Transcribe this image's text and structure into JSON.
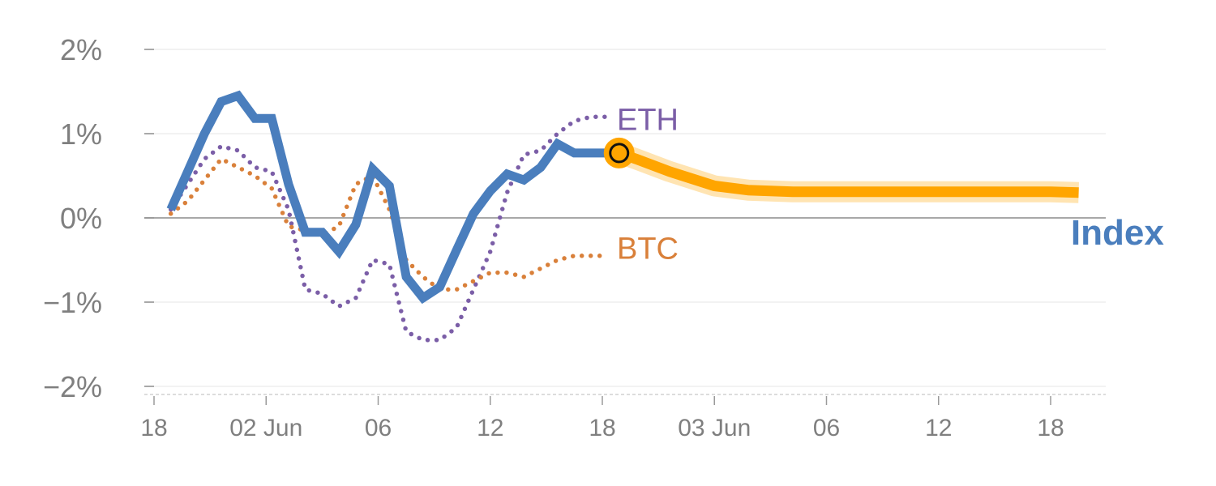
{
  "chart_data": {
    "type": "line",
    "title": "",
    "xlabel": "",
    "ylabel": "",
    "ylim": [
      -2,
      2
    ],
    "y_ticks": [
      {
        "value": 2,
        "label": "2%"
      },
      {
        "value": 1,
        "label": "1%"
      },
      {
        "value": 0,
        "label": "0%"
      },
      {
        "value": -1,
        "label": "−1%"
      },
      {
        "value": -2,
        "label": "−2%"
      }
    ],
    "x_range": [
      0,
      84
    ],
    "x_ticks": [
      {
        "value": 0,
        "label": "18"
      },
      {
        "value": 10,
        "label": "02 Jun"
      },
      {
        "value": 20,
        "label": "06"
      },
      {
        "value": 30,
        "label": "12"
      },
      {
        "value": 40,
        "label": "18"
      },
      {
        "value": 50,
        "label": "03 Jun"
      },
      {
        "value": 60,
        "label": "06"
      },
      {
        "value": 70,
        "label": "12"
      },
      {
        "value": 80,
        "label": "18"
      }
    ],
    "grid": true,
    "series": [
      {
        "name": "ETH",
        "style": "dotted",
        "color": "#7b5ea7",
        "x": [
          1.5,
          3,
          4.5,
          6,
          7.5,
          9,
          10.5,
          12,
          13.5,
          15,
          16.5,
          18,
          19.5,
          21,
          22.5,
          24,
          25.5,
          27,
          28.5,
          30,
          31.5,
          33,
          34.5,
          36,
          37.5,
          39,
          40.5
        ],
        "y": [
          0.1,
          0.4,
          0.7,
          0.85,
          0.8,
          0.6,
          0.55,
          0.1,
          -0.85,
          -0.9,
          -1.05,
          -0.95,
          -0.5,
          -0.55,
          -1.35,
          -1.45,
          -1.45,
          -1.3,
          -0.85,
          -0.4,
          0.3,
          0.75,
          0.8,
          1.0,
          1.15,
          1.2,
          1.2
        ]
      },
      {
        "name": "BTC",
        "style": "dotted",
        "color": "#d9803a",
        "x": [
          1.5,
          3,
          4.5,
          6,
          7.5,
          9,
          10.5,
          12,
          13.5,
          15,
          16.5,
          18,
          19.5,
          21,
          22.5,
          24,
          25.5,
          27,
          28.5,
          30,
          31.5,
          33,
          34.5,
          36,
          37.5,
          39,
          40.5
        ],
        "y": [
          0.05,
          0.2,
          0.45,
          0.7,
          0.6,
          0.5,
          0.35,
          -0.1,
          -0.15,
          -0.2,
          -0.1,
          0.4,
          0.5,
          0.1,
          -0.5,
          -0.7,
          -0.85,
          -0.85,
          -0.75,
          -0.65,
          -0.65,
          -0.7,
          -0.6,
          -0.5,
          -0.45,
          -0.45,
          -0.45
        ]
      },
      {
        "name": "Index",
        "style": "solid",
        "color": "#4a7ebd",
        "x": [
          1.5,
          3,
          4.5,
          6,
          7.5,
          9,
          10.5,
          12,
          13.5,
          15,
          16.5,
          18,
          19.5,
          21,
          22.5,
          24,
          25.5,
          27,
          28.5,
          30,
          31.5,
          33,
          34.5,
          36,
          37.5,
          39,
          40.5
        ],
        "y": [
          0.1,
          0.55,
          1.0,
          1.38,
          1.45,
          1.18,
          1.18,
          0.4,
          -0.17,
          -0.17,
          -0.4,
          -0.08,
          0.58,
          0.38,
          -0.7,
          -0.95,
          -0.82,
          -0.38,
          0.05,
          0.32,
          0.52,
          0.45,
          0.6,
          0.88,
          0.77,
          0.77,
          0.77
        ]
      }
    ],
    "projection": {
      "color": "#ffa500",
      "x": [
        41.5,
        43,
        46,
        50,
        53,
        57,
        60,
        65,
        70,
        75,
        80,
        82.5
      ],
      "y": [
        0.77,
        0.7,
        0.55,
        0.38,
        0.33,
        0.31,
        0.31,
        0.31,
        0.31,
        0.31,
        0.31,
        0.3
      ]
    },
    "marker": {
      "x": 41.5,
      "y": 0.77
    },
    "labels": [
      {
        "text": "ETH",
        "series": "ETH",
        "x": 41.3,
        "y": 1.17
      },
      {
        "text": "BTC",
        "series": "BTC",
        "x": 41.3,
        "y": -0.36
      },
      {
        "text": "Index",
        "series": "Index",
        "x": 81.8,
        "y": -0.19
      }
    ]
  }
}
